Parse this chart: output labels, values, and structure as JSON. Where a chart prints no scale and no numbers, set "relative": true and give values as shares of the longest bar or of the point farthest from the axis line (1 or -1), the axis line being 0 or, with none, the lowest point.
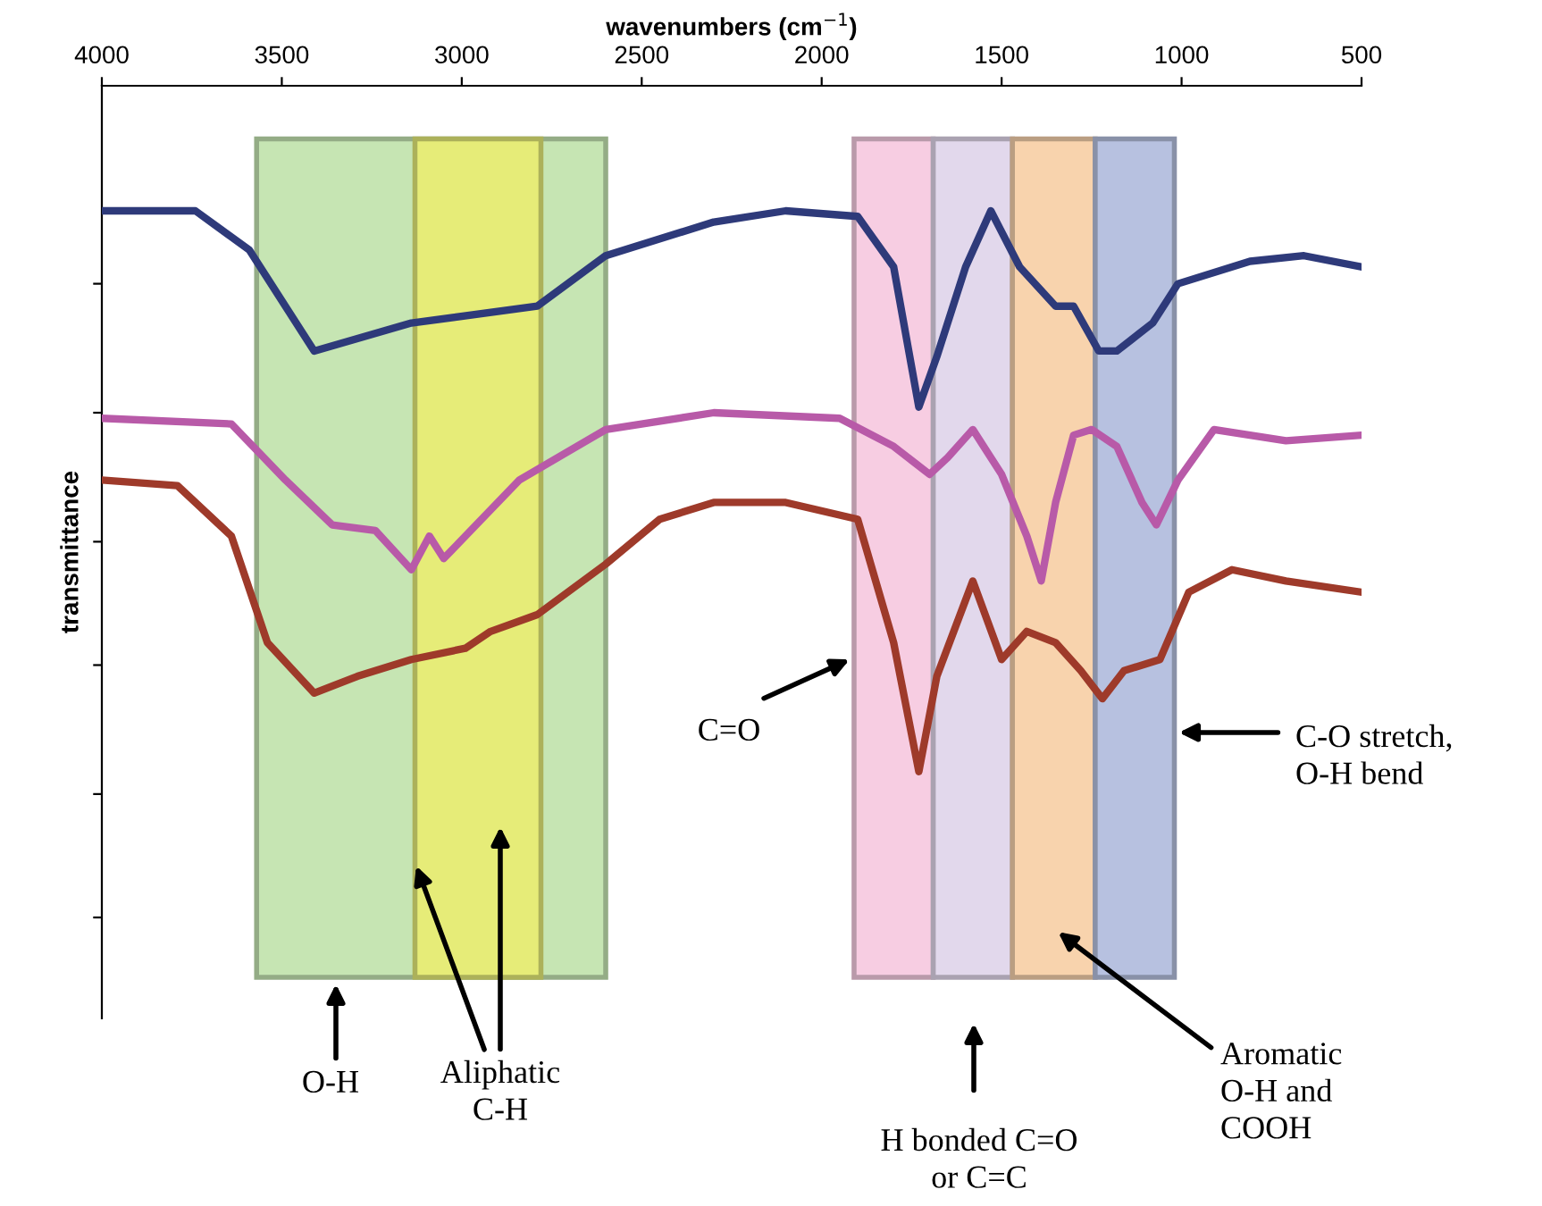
{
  "chart_data": {
    "type": "line",
    "relative": true,
    "xlabel": "wavenumbers (cm$^{−1}$)",
    "ylabel": "transmittance",
    "xlim": [
      4000,
      500
    ],
    "xticks": [
      4000,
      3500,
      3000,
      2500,
      2000,
      1500,
      1000,
      500
    ],
    "tick_labels": "x",
    "grid": false,
    "legend": false,
    "marker": "none",
    "line_style": "solid",
    "series": [
      {
        "color": "#2e3a7a",
        "x": [
          4000,
          3740,
          3590,
          3410,
          3140,
          2790,
          2600,
          2300,
          2100,
          1900,
          1800,
          1730,
          1680,
          1600,
          1530,
          1450,
          1350,
          1300,
          1230,
          1180,
          1080,
          1010,
          810,
          660,
          500
        ],
        "values": [
          1.0,
          1.0,
          0.93,
          0.75,
          0.8,
          0.83,
          0.92,
          0.98,
          1.0,
          0.99,
          0.9,
          0.65,
          0.74,
          0.9,
          1.0,
          0.9,
          0.83,
          0.83,
          0.75,
          0.75,
          0.8,
          0.87,
          0.91,
          0.92,
          0.9
        ]
      },
      {
        "color": "#b85aa8",
        "x": [
          4000,
          3640,
          3490,
          3360,
          3240,
          3140,
          3090,
          3050,
          2990,
          2840,
          2600,
          2300,
          1950,
          1800,
          1700,
          1650,
          1580,
          1500,
          1430,
          1390,
          1350,
          1300,
          1250,
          1180,
          1110,
          1070,
          1010,
          910,
          710,
          500
        ],
        "values": [
          0.63,
          0.62,
          0.52,
          0.44,
          0.43,
          0.36,
          0.42,
          0.38,
          0.42,
          0.52,
          0.61,
          0.64,
          0.63,
          0.58,
          0.53,
          0.56,
          0.61,
          0.53,
          0.42,
          0.34,
          0.48,
          0.6,
          0.61,
          0.58,
          0.48,
          0.44,
          0.52,
          0.61,
          0.59,
          0.6
        ]
      },
      {
        "color": "#9e3a2a",
        "x": [
          4000,
          3790,
          3640,
          3540,
          3410,
          3290,
          3140,
          2990,
          2920,
          2790,
          2600,
          2450,
          2300,
          2100,
          1900,
          1800,
          1730,
          1680,
          1580,
          1500,
          1430,
          1350,
          1280,
          1220,
          1160,
          1060,
          980,
          860,
          710,
          500
        ],
        "values": [
          0.52,
          0.51,
          0.42,
          0.23,
          0.14,
          0.17,
          0.2,
          0.22,
          0.25,
          0.28,
          0.37,
          0.45,
          0.48,
          0.48,
          0.45,
          0.23,
          0.0,
          0.17,
          0.34,
          0.2,
          0.25,
          0.23,
          0.18,
          0.13,
          0.18,
          0.2,
          0.32,
          0.36,
          0.34,
          0.32
        ]
      }
    ],
    "bands": [
      {
        "axis": "x",
        "from": 3570,
        "to": 2600,
        "color": "#c6e5b3"
      },
      {
        "axis": "x",
        "from": 3130,
        "to": 2780,
        "color": "#e6ec78"
      },
      {
        "axis": "x",
        "from": 1910,
        "to": 1690,
        "color": "#f7cde2"
      },
      {
        "axis": "x",
        "from": 1690,
        "to": 1470,
        "color": "#e2d8ec"
      },
      {
        "axis": "x",
        "from": 1470,
        "to": 1240,
        "color": "#f8d3ad"
      },
      {
        "axis": "x",
        "from": 1240,
        "to": 1020,
        "color": "#b7c1e0"
      }
    ],
    "annotations": [
      "O-H",
      "Aliphatic\nC-H",
      "C=O",
      "H bonded C=O\nor C=C",
      "Aromatic\nO-H and\nCOOH",
      "C-O stretch,\nO-H bend"
    ]
  }
}
